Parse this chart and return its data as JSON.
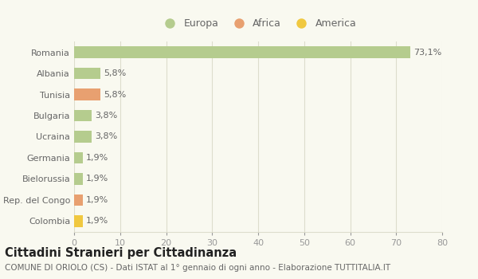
{
  "categories": [
    "Romania",
    "Albania",
    "Tunisia",
    "Bulgaria",
    "Ucraina",
    "Germania",
    "Bielorussia",
    "Rep. del Congo",
    "Colombia"
  ],
  "values": [
    73.1,
    5.8,
    5.8,
    3.8,
    3.8,
    1.9,
    1.9,
    1.9,
    1.9
  ],
  "labels": [
    "73,1%",
    "5,8%",
    "5,8%",
    "3,8%",
    "3,8%",
    "1,9%",
    "1,9%",
    "1,9%",
    "1,9%"
  ],
  "bar_colors": [
    "#b5cc8e",
    "#b5cc8e",
    "#e8a070",
    "#b5cc8e",
    "#b5cc8e",
    "#b5cc8e",
    "#b5cc8e",
    "#e8a070",
    "#f0c840"
  ],
  "legend": [
    {
      "label": "Europa",
      "color": "#b5cc8e"
    },
    {
      "label": "Africa",
      "color": "#e8a070"
    },
    {
      "label": "America",
      "color": "#f0c840"
    }
  ],
  "xlim": [
    0,
    80
  ],
  "xticks": [
    0,
    10,
    20,
    30,
    40,
    50,
    60,
    70,
    80
  ],
  "title": "Cittadini Stranieri per Cittadinanza",
  "subtitle": "COMUNE DI ORIOLO (CS) - Dati ISTAT al 1° gennaio di ogni anno - Elaborazione TUTTITALIA.IT",
  "background_color": "#f9f9f0",
  "grid_color": "#ddddcc",
  "bar_height": 0.55,
  "label_fontsize": 8,
  "tick_fontsize": 8,
  "title_fontsize": 10.5,
  "subtitle_fontsize": 7.5,
  "legend_fontsize": 9
}
